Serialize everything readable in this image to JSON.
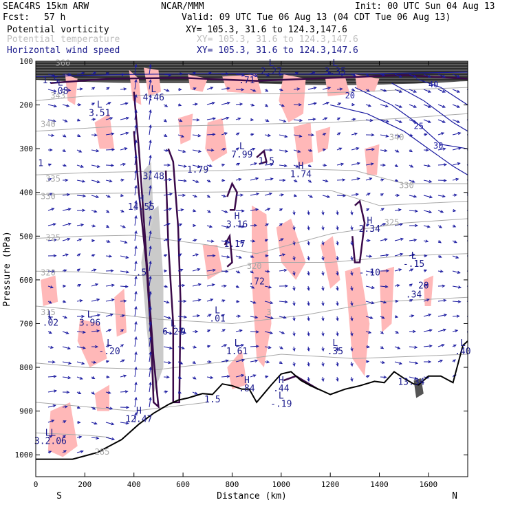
{
  "header": {
    "model": "SEAC4RS 15km ARW",
    "center": "NCAR/MMM",
    "init": "Init: 00 UTC Sun 04 Aug 13",
    "fcst_label": "Fcst:",
    "fcst_value": "57 h",
    "valid": "Valid: 09 UTC Tue 06 Aug 13 (04 CDT Tue 06 Aug 13)",
    "fields": [
      {
        "name": "Potential vorticity",
        "xy": "XY= 105.3, 31.6 to 124.3,147.6",
        "color": "#000000"
      },
      {
        "name": "Potential temperature",
        "xy": "XY= 105.3, 31.6 to 124.3,147.6",
        "color": "#bdbdbd"
      },
      {
        "name": "Horizontal wind speed",
        "xy": "XY= 105.3, 31.6 to 124.3,147.6",
        "color": "#1a1a8c"
      }
    ]
  },
  "chart_data": {
    "type": "cross-section",
    "xlabel": "Distance (km)",
    "ylabel": "Pressure (hPa)",
    "xlim": [
      0,
      1760
    ],
    "ylim": [
      1050,
      100
    ],
    "x_ticks": [
      0,
      200,
      400,
      600,
      800,
      1000,
      1200,
      1400,
      1600
    ],
    "y_ticks": [
      100,
      200,
      300,
      400,
      500,
      600,
      700,
      800,
      900,
      1000
    ],
    "left_end_label": "S",
    "right_end_label": "N",
    "theta_labels": [
      {
        "x": 20,
        "p": 250,
        "text": "340"
      },
      {
        "x": 40,
        "p": 375,
        "text": "335"
      },
      {
        "x": 20,
        "p": 415,
        "text": "330"
      },
      {
        "x": 40,
        "p": 510,
        "text": "325"
      },
      {
        "x": 20,
        "p": 590,
        "text": "320"
      },
      {
        "x": 20,
        "p": 680,
        "text": "315"
      },
      {
        "x": 80,
        "p": 110,
        "text": "360"
      },
      {
        "x": 60,
        "p": 185,
        "text": "343"
      },
      {
        "x": 1440,
        "p": 280,
        "text": "340"
      },
      {
        "x": 1480,
        "p": 390,
        "text": "330"
      },
      {
        "x": 1420,
        "p": 475,
        "text": "325"
      },
      {
        "x": 860,
        "p": 575,
        "text": "320"
      },
      {
        "x": 940,
        "p": 680,
        "text": "3"
      },
      {
        "x": 240,
        "p": 1000,
        "text": "285"
      }
    ],
    "wind_labels": [
      {
        "x": 1260,
        "p": 185,
        "text": "20"
      },
      {
        "x": 1540,
        "p": 255,
        "text": "25"
      },
      {
        "x": 1600,
        "p": 160,
        "text": "40"
      },
      {
        "x": 1620,
        "p": 300,
        "text": "30"
      }
    ],
    "extrema": [
      {
        "x": 100,
        "p": 175,
        "letter": "L",
        "value": ".08"
      },
      {
        "x": 60,
        "p": 150,
        "letter": "",
        "value": "1.5"
      },
      {
        "x": 260,
        "p": 225,
        "letter": "L",
        "value": "3.51"
      },
      {
        "x": 20,
        "p": 340,
        "letter": "",
        "value": "1"
      },
      {
        "x": 480,
        "p": 190,
        "letter": "L",
        "value": "4.46"
      },
      {
        "x": 860,
        "p": 150,
        "letter": "",
        "value": ".71"
      },
      {
        "x": 960,
        "p": 130,
        "letter": "L",
        "value": "2.27"
      },
      {
        "x": 1220,
        "p": 130,
        "letter": "L",
        "value": "3.35"
      },
      {
        "x": 660,
        "p": 355,
        "letter": "",
        "value": "1.79"
      },
      {
        "x": 840,
        "p": 320,
        "letter": "L",
        "value": "7.99"
      },
      {
        "x": 940,
        "p": 335,
        "letter": "",
        "value": "1.5"
      },
      {
        "x": 1080,
        "p": 365,
        "letter": "H",
        "value": "1.74"
      },
      {
        "x": 480,
        "p": 370,
        "letter": "",
        "value": "3.48"
      },
      {
        "x": 430,
        "p": 440,
        "letter": "H",
        "value": "14.55"
      },
      {
        "x": 820,
        "p": 480,
        "letter": "H",
        "value": "3.16"
      },
      {
        "x": 810,
        "p": 525,
        "letter": "",
        "value": "1.17"
      },
      {
        "x": 1360,
        "p": 490,
        "letter": "H",
        "value": "2.34"
      },
      {
        "x": 1540,
        "p": 570,
        "letter": "L",
        "value": "-.15"
      },
      {
        "x": 430,
        "p": 590,
        "letter": "",
        "value": ".5"
      },
      {
        "x": 900,
        "p": 610,
        "letter": "",
        "value": ".72"
      },
      {
        "x": 1360,
        "p": 590,
        "letter": "",
        "value": "-.10"
      },
      {
        "x": 1540,
        "p": 640,
        "letter": "",
        "value": ".34"
      },
      {
        "x": 1580,
        "p": 620,
        "letter": "",
        "value": "20"
      },
      {
        "x": 60,
        "p": 705,
        "letter": "L",
        "value": ".02"
      },
      {
        "x": 220,
        "p": 705,
        "letter": "L",
        "value": "3.96"
      },
      {
        "x": 740,
        "p": 695,
        "letter": "L",
        "value": ".01"
      },
      {
        "x": 560,
        "p": 725,
        "letter": "L",
        "value": "6.27"
      },
      {
        "x": 600,
        "p": 725,
        "letter": "",
        "value": "9"
      },
      {
        "x": 300,
        "p": 770,
        "letter": "L",
        "value": "-.20"
      },
      {
        "x": 820,
        "p": 770,
        "letter": "L",
        "value": "1.61"
      },
      {
        "x": 1220,
        "p": 770,
        "letter": "L",
        "value": ".35"
      },
      {
        "x": 1740,
        "p": 770,
        "letter": "L",
        "value": ".40"
      },
      {
        "x": 720,
        "p": 880,
        "letter": "",
        "value": "1.5"
      },
      {
        "x": 860,
        "p": 855,
        "letter": "H",
        "value": ".84"
      },
      {
        "x": 1000,
        "p": 855,
        "letter": "H",
        "value": ".44"
      },
      {
        "x": 1000,
        "p": 890,
        "letter": "L",
        "value": "-.19"
      },
      {
        "x": 1530,
        "p": 840,
        "letter": "",
        "value": "13.34"
      },
      {
        "x": 420,
        "p": 925,
        "letter": "H",
        "value": "12.47"
      },
      {
        "x": 60,
        "p": 975,
        "letter": "LL",
        "value": "3.2.06"
      }
    ],
    "terrain_p": [
      [
        0,
        1010
      ],
      [
        150,
        1010
      ],
      [
        250,
        995
      ],
      [
        350,
        965
      ],
      [
        420,
        930
      ],
      [
        480,
        905
      ],
      [
        540,
        885
      ],
      [
        580,
        875
      ],
      [
        620,
        870
      ],
      [
        680,
        860
      ],
      [
        720,
        862
      ],
      [
        760,
        838
      ],
      [
        800,
        842
      ],
      [
        840,
        850
      ],
      [
        870,
        850
      ],
      [
        900,
        880
      ],
      [
        930,
        860
      ],
      [
        960,
        840
      ],
      [
        1000,
        815
      ],
      [
        1040,
        810
      ],
      [
        1080,
        830
      ],
      [
        1120,
        842
      ],
      [
        1160,
        852
      ],
      [
        1200,
        862
      ],
      [
        1260,
        850
      ],
      [
        1320,
        842
      ],
      [
        1380,
        832
      ],
      [
        1420,
        835
      ],
      [
        1460,
        810
      ],
      [
        1500,
        825
      ],
      [
        1540,
        838
      ],
      [
        1560,
        840
      ],
      [
        1600,
        820
      ],
      [
        1650,
        820
      ],
      [
        1700,
        835
      ],
      [
        1740,
        750
      ],
      [
        1760,
        740
      ]
    ]
  }
}
